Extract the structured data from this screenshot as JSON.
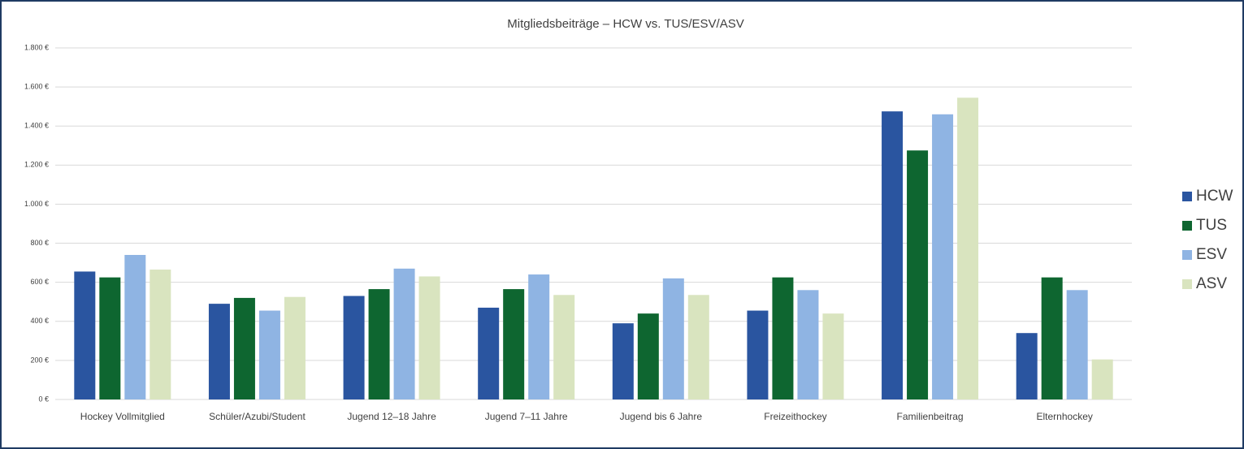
{
  "chart_data": {
    "type": "bar",
    "title": "Mitgliedsbeiträge – HCW vs. TUS/ESV/ASV",
    "categories": [
      "Hockey Vollmitglied",
      "Schüler/Azubi/Student",
      "Jugend 12–18 Jahre",
      "Jugend 7–11 Jahre",
      "Jugend bis 6 Jahre",
      "Freizeithockey",
      "Familienbeitrag",
      "Elternhockey"
    ],
    "series": [
      {
        "name": "HCW",
        "color": "#2a55a0",
        "values": [
          655,
          490,
          530,
          470,
          390,
          455,
          1475,
          340
        ]
      },
      {
        "name": "TUS",
        "color": "#0e6630",
        "values": [
          625,
          520,
          565,
          565,
          440,
          625,
          1275,
          625
        ]
      },
      {
        "name": "ESV",
        "color": "#8fb4e3",
        "values": [
          740,
          455,
          670,
          640,
          620,
          560,
          1460,
          560
        ]
      },
      {
        "name": "ASV",
        "color": "#d9e4bf",
        "values": [
          665,
          525,
          630,
          535,
          535,
          440,
          1545,
          205
        ]
      }
    ],
    "ylim": [
      0,
      1800
    ],
    "yticks": [
      {
        "value": 0,
        "label": "0 €"
      },
      {
        "value": 200,
        "label": "200 €"
      },
      {
        "value": 400,
        "label": "400 €"
      },
      {
        "value": 600,
        "label": "600 €"
      },
      {
        "value": 800,
        "label": "800 €"
      },
      {
        "value": 1000,
        "label": "1.000 €"
      },
      {
        "value": 1200,
        "label": "1.200 €"
      },
      {
        "value": 1400,
        "label": "1.400 €"
      },
      {
        "value": 1600,
        "label": "1.600 €"
      },
      {
        "value": 1800,
        "label": "1.800 €"
      }
    ],
    "grid": true,
    "legend": "right"
  }
}
